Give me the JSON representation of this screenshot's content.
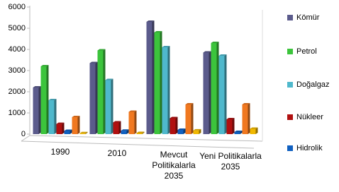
{
  "chart_data": {
    "type": "bar",
    "categories": [
      "1990",
      "2010",
      "Mevcut Politikalarla 2035",
      "Yeni Politikalarla 2035"
    ],
    "series": [
      {
        "name": "Kömür",
        "color": "#5b5b8c",
        "values": [
          2200,
          3350,
          5300,
          3850
        ]
      },
      {
        "name": "Petrol",
        "color": "#3cc43c",
        "values": [
          3200,
          3950,
          4800,
          4300
        ]
      },
      {
        "name": "Doğalgaz",
        "color": "#4fb8cc",
        "values": [
          1600,
          2550,
          4100,
          3700
        ]
      },
      {
        "name": "Nükleer",
        "color": "#b01010",
        "values": [
          480,
          550,
          750,
          700
        ]
      },
      {
        "name": "Hidrolik",
        "color": "#1060c0",
        "values": [
          150,
          160,
          200,
          100
        ]
      },
      {
        "color": "#f07820",
        "values": [
          800,
          1050,
          1400,
          1400
        ]
      },
      {
        "color": "#f0b800",
        "values": [
          40,
          50,
          170,
          250
        ]
      }
    ],
    "ylim": [
      0,
      6000
    ],
    "yticks": [
      0,
      1000,
      2000,
      3000,
      4000,
      5000,
      6000
    ],
    "grid": false
  }
}
